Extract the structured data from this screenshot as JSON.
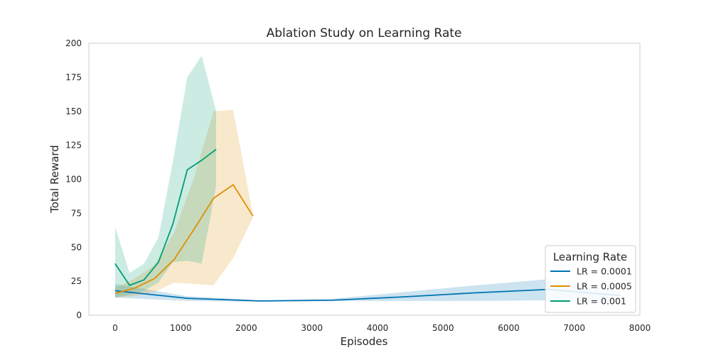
{
  "chart_data": {
    "type": "line",
    "title": "Ablation Study on Learning Rate",
    "xlabel": "Episodes",
    "ylabel": "Total Reward",
    "xlim": [
      -400,
      8000
    ],
    "ylim": [
      0,
      200
    ],
    "xticks": [
      0,
      1000,
      2000,
      3000,
      4000,
      5000,
      6000,
      7000,
      8000
    ],
    "yticks": [
      0,
      25,
      50,
      75,
      100,
      125,
      150,
      175,
      200
    ],
    "grid": false,
    "legend": {
      "title": "Learning Rate",
      "placement": "lower-right"
    },
    "series": [
      {
        "name": "LR = 0.0001",
        "color": "#0173b2",
        "x": [
          0,
          1100,
          2200,
          3300,
          4400,
          5500,
          6600,
          7700
        ],
        "y": [
          18,
          12.5,
          10.5,
          11,
          13.5,
          16.5,
          19,
          14.5
        ],
        "lower": [
          13,
          10.5,
          10,
          10.5,
          10.5,
          10.5,
          11,
          10.5
        ],
        "upper": [
          23,
          14,
          11,
          12,
          17,
          22,
          26.5,
          17.5
        ]
      },
      {
        "name": "LR = 0.0005",
        "color": "#de8f05",
        "x": [
          0,
          300,
          600,
          900,
          1200,
          1500,
          1800,
          2100
        ],
        "y": [
          16,
          20,
          27,
          41,
          63,
          86,
          96,
          73
        ],
        "lower": [
          13,
          14,
          17,
          24,
          23,
          22,
          42,
          72
        ],
        "upper": [
          20,
          27,
          37,
          61,
          101,
          150,
          151,
          74
        ]
      },
      {
        "name": "LR = 0.001",
        "color": "#029e73",
        "x": [
          0,
          220,
          440,
          660,
          880,
          1100,
          1320,
          1540
        ],
        "y": [
          38,
          22,
          26,
          39,
          67,
          107,
          114,
          122
        ],
        "lower": [
          13,
          15,
          18,
          24,
          39,
          40,
          38,
          95
        ],
        "upper": [
          65,
          31,
          38,
          57,
          113,
          175,
          191,
          150
        ]
      }
    ]
  }
}
